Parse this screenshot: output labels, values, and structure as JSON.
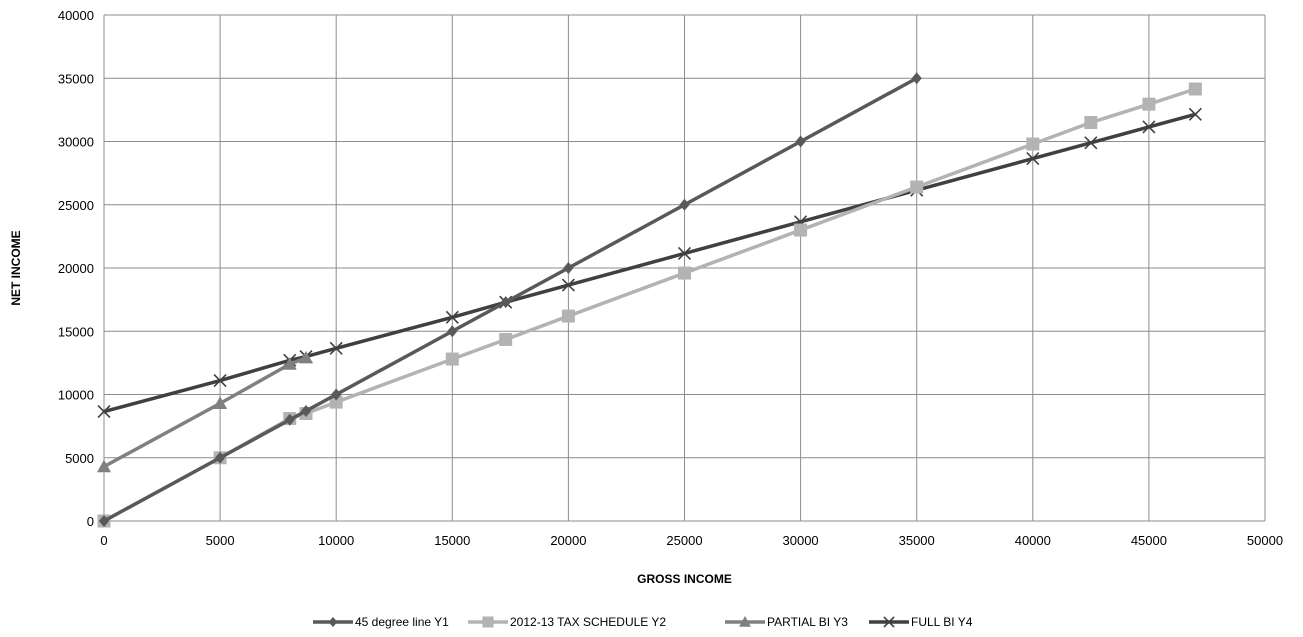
{
  "chart_data": {
    "type": "line",
    "title": "",
    "xlabel": "GROSS INCOME",
    "ylabel": "NET INCOME",
    "xlim": [
      0,
      50000
    ],
    "ylim": [
      0,
      40000
    ],
    "x_ticks": [
      "0",
      "5000",
      "10000",
      "15000",
      "20000",
      "25000",
      "30000",
      "35000",
      "40000",
      "45000",
      "50000"
    ],
    "y_ticks": [
      "0",
      "5000",
      "10000",
      "15000",
      "20000",
      "25000",
      "30000",
      "35000",
      "40000"
    ],
    "grid": true,
    "legend_position": "bottom",
    "series": [
      {
        "name": "45 degree line Y1",
        "marker": "diamond",
        "color": "#595959",
        "points": [
          [
            0,
            0
          ],
          [
            5000,
            5000
          ],
          [
            8000,
            8000
          ],
          [
            8700,
            8700
          ],
          [
            10000,
            10000
          ],
          [
            15000,
            15000
          ],
          [
            17300,
            17300
          ],
          [
            20000,
            20000
          ],
          [
            25000,
            25000
          ],
          [
            30000,
            30000
          ],
          [
            35000,
            35000
          ]
        ]
      },
      {
        "name": "2012-13 TAX SCHEDULE Y2",
        "marker": "square",
        "color": "#b3b3b3",
        "points": [
          [
            0,
            0
          ],
          [
            5000,
            5000
          ],
          [
            8000,
            8100
          ],
          [
            8700,
            8500
          ],
          [
            10000,
            9400
          ],
          [
            15000,
            12800
          ],
          [
            17300,
            14350
          ],
          [
            20000,
            16200
          ],
          [
            25000,
            19600
          ],
          [
            30000,
            23000
          ],
          [
            35000,
            26400
          ],
          [
            40000,
            29800
          ],
          [
            42500,
            31500
          ],
          [
            45000,
            32950
          ],
          [
            47000,
            34150
          ]
        ]
      },
      {
        "name": "PARTIAL BI Y3",
        "marker": "triangle",
        "color": "#808080",
        "points": [
          [
            0,
            4300
          ],
          [
            5000,
            9300
          ],
          [
            8000,
            12400
          ],
          [
            8700,
            12900
          ]
        ]
      },
      {
        "name": "FULL BI Y4",
        "marker": "x",
        "color": "#404040",
        "points": [
          [
            0,
            8650
          ],
          [
            5000,
            11100
          ],
          [
            8000,
            12700
          ],
          [
            8700,
            13000
          ],
          [
            10000,
            13650
          ],
          [
            15000,
            16100
          ],
          [
            17300,
            17300
          ],
          [
            20000,
            18650
          ],
          [
            25000,
            21150
          ],
          [
            30000,
            23650
          ],
          [
            35000,
            26150
          ],
          [
            40000,
            28650
          ],
          [
            42500,
            29900
          ],
          [
            45000,
            31150
          ],
          [
            47000,
            32150
          ]
        ]
      }
    ]
  }
}
